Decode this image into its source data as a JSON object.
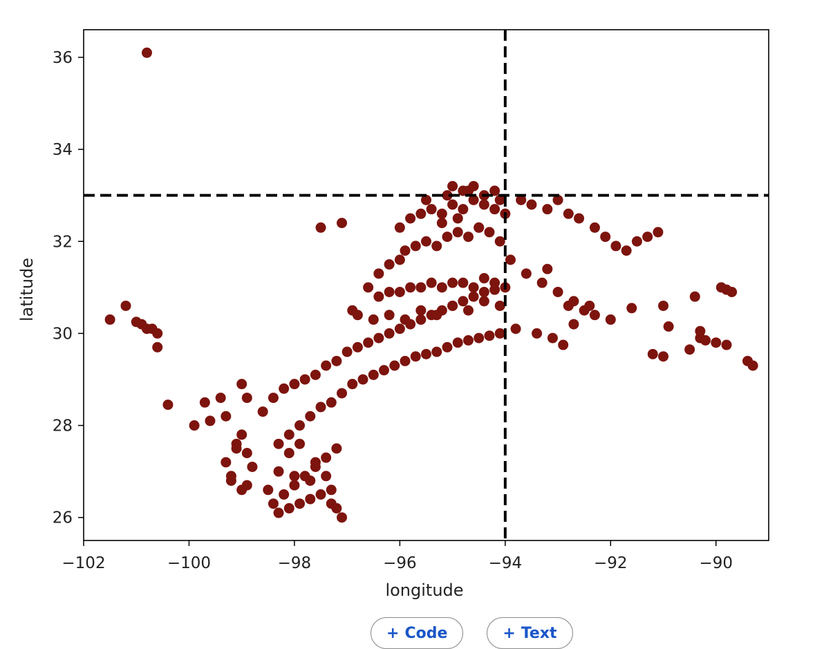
{
  "chart_data": {
    "type": "scatter",
    "title": "",
    "xlabel": "longitude",
    "ylabel": "latitude",
    "xlim": [
      -102,
      -89
    ],
    "ylim": [
      25.5,
      36.6
    ],
    "xticks": [
      -102,
      -100,
      -98,
      -96,
      -94,
      -92,
      -90
    ],
    "yticks": [
      26,
      28,
      30,
      32,
      34,
      36
    ],
    "xtick_labels": [
      "−102",
      "−100",
      "−98",
      "−96",
      "−94",
      "−92",
      "−90"
    ],
    "ytick_labels": [
      "26",
      "28",
      "30",
      "32",
      "34",
      "36"
    ],
    "grid": false,
    "marker_color": "#7d140e",
    "reference_lines": [
      {
        "orientation": "vertical",
        "value": -94,
        "style": "dashed",
        "color": "#000000"
      },
      {
        "orientation": "horizontal",
        "value": 33,
        "style": "dashed",
        "color": "#000000"
      }
    ],
    "series": [
      {
        "x": [
          -100.8,
          -101.5,
          -101.2,
          -101.0,
          -100.9,
          -100.8,
          -100.7,
          -100.6,
          -100.6,
          -100.4,
          -99.9,
          -99.7,
          -99.6,
          -99.4,
          -99.3,
          -99.0,
          -98.9,
          -99.3,
          -99.2,
          -99.1,
          -99.0,
          -99.1,
          -99.2,
          -98.9,
          -98.8,
          -98.9,
          -99.0,
          -98.6,
          -98.4,
          -98.2,
          -98.0,
          -97.8,
          -97.6,
          -97.4,
          -97.2,
          -97.0,
          -96.8,
          -96.6,
          -96.4,
          -96.2,
          -96.0,
          -95.8,
          -95.6,
          -95.4,
          -95.2,
          -95.0,
          -94.8,
          -94.6,
          -94.4,
          -94.2,
          -94.0,
          -98.3,
          -98.1,
          -97.9,
          -97.7,
          -97.5,
          -97.3,
          -97.1,
          -96.9,
          -96.7,
          -96.5,
          -96.3,
          -96.1,
          -95.9,
          -95.7,
          -95.5,
          -95.3,
          -95.1,
          -94.9,
          -94.7,
          -94.5,
          -94.3,
          -94.1,
          -98.4,
          -98.2,
          -98.0,
          -97.8,
          -97.6,
          -97.4,
          -97.2,
          -98.3,
          -98.1,
          -97.9,
          -97.7,
          -97.5,
          -97.3,
          -97.1,
          -97.3,
          -97.2,
          -97.4,
          -98.5,
          -98.3,
          -98.1,
          -98.0,
          -97.9,
          -97.7,
          -97.6,
          -96.8,
          -96.5,
          -96.2,
          -95.9,
          -95.6,
          -95.3,
          -95.0,
          -94.7,
          -94.4,
          -94.1,
          -96.4,
          -96.2,
          -96.0,
          -95.8,
          -95.6,
          -95.4,
          -95.2,
          -95.0,
          -94.8,
          -94.6,
          -94.4,
          -94.2,
          -96.6,
          -96.4,
          -96.2,
          -96.0,
          -95.9,
          -95.7,
          -95.5,
          -95.3,
          -95.1,
          -94.9,
          -94.7,
          -94.5,
          -94.3,
          -94.1,
          -96.0,
          -95.8,
          -95.6,
          -95.4,
          -95.2,
          -95.0,
          -94.8,
          -94.6,
          -94.4,
          -94.2,
          -94.0,
          -95.5,
          -95.1,
          -94.7,
          -95.0,
          -94.8,
          -94.6,
          -94.4,
          -94.2,
          -94.1,
          -95.2,
          -94.9,
          -94.5,
          -97.5,
          -97.1,
          -96.9,
          -93.9,
          -93.6,
          -93.3,
          -93.0,
          -92.7,
          -92.5,
          -92.3,
          -92.0,
          -93.2,
          -92.8,
          -93.7,
          -93.5,
          -93.2,
          -93.0,
          -92.8,
          -92.6,
          -92.3,
          -92.1,
          -91.9,
          -91.7,
          -93.8,
          -93.4,
          -93.1,
          -92.7,
          -92.4,
          -92.9,
          -91.5,
          -91.3,
          -91.1,
          -91.0,
          -91.6,
          -90.3,
          -90.4,
          -90.2,
          -90.0,
          -89.8,
          -89.7,
          -89.4,
          -89.3,
          -90.5,
          -91.2,
          -91.0,
          -90.9,
          -90.3,
          -89.9,
          -89.8
        ],
        "y": [
          36.1,
          30.3,
          30.6,
          30.25,
          30.2,
          30.1,
          30.1,
          30.0,
          29.7,
          28.45,
          28.0,
          28.5,
          28.1,
          28.6,
          28.2,
          28.9,
          28.6,
          27.2,
          26.9,
          27.5,
          26.6,
          27.6,
          26.8,
          27.4,
          27.1,
          26.7,
          27.8,
          28.3,
          28.6,
          28.8,
          28.9,
          29.0,
          29.1,
          29.3,
          29.4,
          29.6,
          29.7,
          29.8,
          29.9,
          30.0,
          30.1,
          30.2,
          30.3,
          30.4,
          30.5,
          30.6,
          30.7,
          30.8,
          30.9,
          30.95,
          31.0,
          27.6,
          27.8,
          28.0,
          28.2,
          28.4,
          28.5,
          28.7,
          28.9,
          29.0,
          29.1,
          29.2,
          29.3,
          29.4,
          29.5,
          29.55,
          29.6,
          29.7,
          29.8,
          29.85,
          29.9,
          29.95,
          30.0,
          26.3,
          26.5,
          26.7,
          26.9,
          27.1,
          27.3,
          27.5,
          26.1,
          26.2,
          26.3,
          26.4,
          26.5,
          26.3,
          26.0,
          26.6,
          26.2,
          26.9,
          26.6,
          27.0,
          27.4,
          26.9,
          27.6,
          26.8,
          27.2,
          30.4,
          30.3,
          30.4,
          30.3,
          30.5,
          30.4,
          30.6,
          30.5,
          30.7,
          30.6,
          30.8,
          30.9,
          30.9,
          31.0,
          31.0,
          31.1,
          31.0,
          31.1,
          31.1,
          31.0,
          31.2,
          31.1,
          31.0,
          31.3,
          31.5,
          31.6,
          31.8,
          31.9,
          32.0,
          31.9,
          32.1,
          32.2,
          32.1,
          32.3,
          32.2,
          32.0,
          32.3,
          32.5,
          32.6,
          32.7,
          32.6,
          32.8,
          32.7,
          32.9,
          32.8,
          32.7,
          32.6,
          32.9,
          33.0,
          33.1,
          33.2,
          33.1,
          33.2,
          33.0,
          33.1,
          32.9,
          32.4,
          32.5,
          32.3,
          32.3,
          32.4,
          30.5,
          31.6,
          31.3,
          31.1,
          30.9,
          30.7,
          30.5,
          30.4,
          30.3,
          31.4,
          30.6,
          32.9,
          32.8,
          32.7,
          32.9,
          32.6,
          32.5,
          32.3,
          32.1,
          31.9,
          31.8,
          30.1,
          30.0,
          29.9,
          30.2,
          30.6,
          29.75,
          32.0,
          32.1,
          32.2,
          30.6,
          30.55,
          29.9,
          30.8,
          29.85,
          29.8,
          29.75,
          30.9,
          29.4,
          29.3,
          29.65,
          29.55,
          29.5,
          30.15,
          30.05,
          31.0,
          30.95
        ]
      }
    ]
  },
  "toolbar": {
    "code_label": "Code",
    "text_label": "Text"
  }
}
